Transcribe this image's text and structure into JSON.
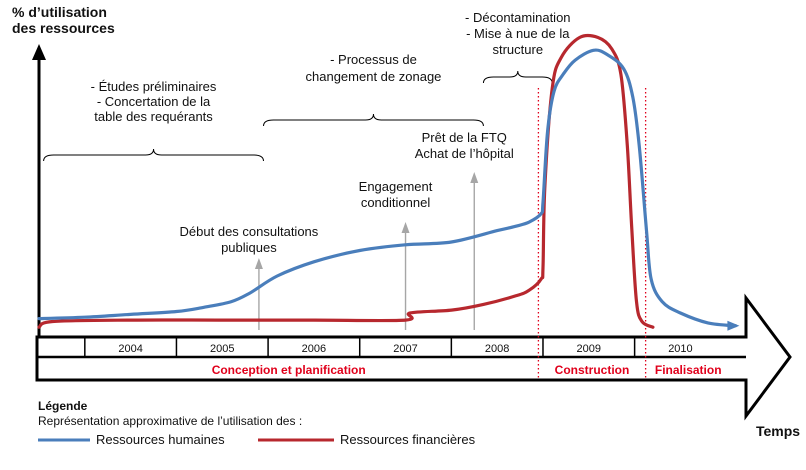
{
  "chart_data": {
    "type": "line",
    "ylabel": [
      "% d’utilisation",
      "des ressources"
    ],
    "xlabel": "Temps",
    "x_range": [
      2003.0,
      2010.65
    ],
    "y_range": [
      0,
      100
    ],
    "years": [
      "2004",
      "2005",
      "2006",
      "2007",
      "2008",
      "2009",
      "2010"
    ],
    "phases": [
      {
        "label": "Conception et planification",
        "start": 2003.0,
        "end": 2008.45
      },
      {
        "label": "Construction",
        "start": 2008.45,
        "end": 2009.62
      },
      {
        "label": "Finalisation",
        "start": 2009.62,
        "end": 2010.65
      }
    ],
    "series": [
      {
        "name": "Ressources humaines",
        "color": "#4a7ebb",
        "points": [
          [
            2003.0,
            4
          ],
          [
            2003.5,
            4.5
          ],
          [
            2004.0,
            5.5
          ],
          [
            2004.5,
            6.5
          ],
          [
            2004.8,
            8
          ],
          [
            2005.1,
            10
          ],
          [
            2005.3,
            13
          ],
          [
            2005.6,
            19
          ],
          [
            2006.0,
            24
          ],
          [
            2006.5,
            28
          ],
          [
            2007.0,
            30
          ],
          [
            2007.5,
            31
          ],
          [
            2008.0,
            35
          ],
          [
            2008.2,
            36.5
          ],
          [
            2008.35,
            38
          ],
          [
            2008.48,
            41
          ],
          [
            2008.5,
            45
          ],
          [
            2008.55,
            70
          ],
          [
            2008.62,
            84
          ],
          [
            2008.72,
            90
          ],
          [
            2008.85,
            95
          ],
          [
            2009.05,
            98.5
          ],
          [
            2009.2,
            97
          ],
          [
            2009.38,
            92
          ],
          [
            2009.48,
            82
          ],
          [
            2009.55,
            65
          ],
          [
            2009.63,
            35
          ],
          [
            2009.68,
            18
          ],
          [
            2009.8,
            10
          ],
          [
            2010.0,
            6
          ],
          [
            2010.3,
            2.5
          ],
          [
            2010.6,
            1.5
          ]
        ]
      },
      {
        "name": "Ressources financières",
        "color": "#b7282e",
        "points": [
          [
            2003.0,
            1
          ],
          [
            2003.15,
            3
          ],
          [
            2004.0,
            3.5
          ],
          [
            2005.0,
            3.5
          ],
          [
            2006.0,
            3.5
          ],
          [
            2007.0,
            3.5
          ],
          [
            2007.05,
            6
          ],
          [
            2007.5,
            7
          ],
          [
            2007.85,
            9
          ],
          [
            2008.2,
            12
          ],
          [
            2008.35,
            14
          ],
          [
            2008.48,
            18
          ],
          [
            2008.5,
            22
          ],
          [
            2008.52,
            50
          ],
          [
            2008.6,
            85
          ],
          [
            2008.7,
            96
          ],
          [
            2008.9,
            103
          ],
          [
            2009.1,
            103
          ],
          [
            2009.25,
            99
          ],
          [
            2009.35,
            90
          ],
          [
            2009.42,
            65
          ],
          [
            2009.47,
            35
          ],
          [
            2009.52,
            10
          ],
          [
            2009.58,
            3
          ],
          [
            2009.7,
            1
          ]
        ]
      }
    ],
    "step_segments": {
      "humaines": [
        [
          2007.35,
          31
        ],
        [
          2007.9,
          33.5
        ],
        [
          2008.05,
          36
        ],
        [
          2008.2,
          37.5
        ],
        [
          2008.35,
          38.5
        ],
        [
          2008.45,
          40
        ]
      ],
      "financieres": [
        [
          2007.0,
          3.5
        ],
        [
          2007.06,
          7
        ],
        [
          2007.75,
          7.5
        ],
        [
          2007.8,
          10
        ],
        [
          2008.15,
          10.5
        ],
        [
          2008.22,
          14
        ],
        [
          2008.45,
          15
        ],
        [
          2008.48,
          18
        ]
      ]
    },
    "events": [
      {
        "label": [
          "Début des consultations",
          "publiques"
        ],
        "x": 2005.4
      },
      {
        "label": [
          "Engagement",
          "conditionnel"
        ],
        "x": 2007.0
      },
      {
        "label": [
          "Prêt de la FTQ",
          "Achat de l’hôpital"
        ],
        "x": 2007.75
      }
    ],
    "braced_phases": [
      {
        "label": [
          "- Études préliminaires",
          "- Concertation de la",
          "table des requérants"
        ],
        "start": 2003.05,
        "end": 2005.45
      },
      {
        "label": [
          "- Processus de",
          "changement de zonage"
        ],
        "start": 2005.45,
        "end": 2007.85
      },
      {
        "label": [
          "- Décontamination",
          "- Mise à nue de la",
          "structure"
        ],
        "start": 2007.85,
        "end": 2008.6
      }
    ],
    "legend": {
      "title": "Légende",
      "subtitle": "Représentation approximative de l’utilisation des :",
      "items": [
        "Ressources humaines",
        "Ressources financières"
      ]
    }
  }
}
